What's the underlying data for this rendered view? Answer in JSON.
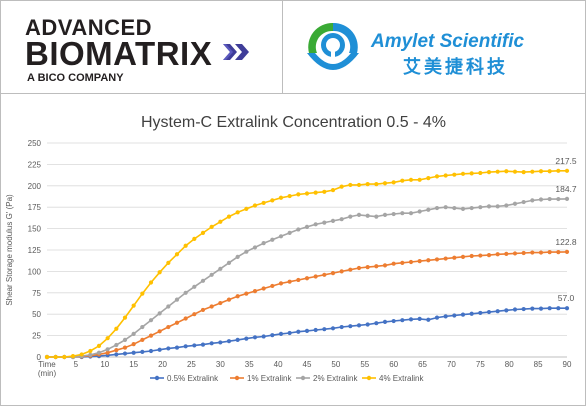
{
  "logos": {
    "advanced_biomatrix": {
      "line1": "ADVANCED",
      "line2": "BIOMATRIX",
      "line3": "A BICO COMPANY"
    },
    "amylet": {
      "name": "Amylet Scientific",
      "chinese": "艾美捷科技",
      "colors": {
        "primary": "#1f8fd6",
        "green": "#3aaa35"
      }
    }
  },
  "chart_data": {
    "type": "line",
    "title": "Hystem-C Extralink Concentration 0.5 - 4%",
    "xlabel": "Time (min)",
    "ylabel": "Shear Storage modulus G' (Pa)",
    "xlim": [
      0,
      90
    ],
    "ylim": [
      0,
      250
    ],
    "xticks": [
      5,
      10,
      15,
      20,
      25,
      30,
      35,
      40,
      45,
      50,
      55,
      60,
      65,
      70,
      75,
      80,
      85,
      90
    ],
    "yticks": [
      0,
      25,
      50,
      75,
      100,
      125,
      150,
      175,
      200,
      225,
      250
    ],
    "x_axis_first_label": "Time",
    "x_axis_first_label_unit": "(min)",
    "grid": "horizontal",
    "legend_position": "bottom",
    "series": [
      {
        "name": "0.5% Extralink",
        "color": "#4472c4",
        "end_label": "57.0",
        "x": [
          0,
          1.5,
          3,
          4.5,
          6,
          7.5,
          9,
          10.5,
          12,
          13.5,
          15,
          16.5,
          18,
          19.5,
          21,
          22.5,
          24,
          25.5,
          27,
          28.5,
          30,
          31.5,
          33,
          34.5,
          36,
          37.5,
          39,
          40.5,
          42,
          43.5,
          45,
          46.5,
          48,
          49.5,
          51,
          52.5,
          54,
          55.5,
          57,
          58.5,
          60,
          61.5,
          63,
          64.5,
          66,
          67.5,
          69,
          70.5,
          72,
          73.5,
          75,
          76.5,
          78,
          79.5,
          81,
          82.5,
          84,
          85.5,
          87,
          88.5,
          90
        ],
        "y": [
          0,
          0,
          0,
          0,
          0,
          0.5,
          1,
          2,
          3,
          4,
          5,
          6,
          7,
          8.5,
          10,
          11,
          12.5,
          13.5,
          14.5,
          16,
          17,
          18.5,
          20,
          21.5,
          23,
          24,
          25.5,
          27,
          28,
          29.5,
          30.5,
          31.5,
          32.5,
          33.5,
          35,
          36,
          37,
          38,
          39.5,
          41,
          42,
          43,
          44,
          44.5,
          43.5,
          46,
          47.5,
          48.5,
          49.5,
          50.5,
          51.5,
          52.5,
          53.5,
          54.5,
          55.5,
          56,
          56.5,
          56.5,
          57,
          57,
          57
        ]
      },
      {
        "name": "1% Extralink",
        "color": "#ed7d31",
        "end_label": "122.8",
        "x": [
          0,
          1.5,
          3,
          4.5,
          6,
          7.5,
          9,
          10.5,
          12,
          13.5,
          15,
          16.5,
          18,
          19.5,
          21,
          22.5,
          24,
          25.5,
          27,
          28.5,
          30,
          31.5,
          33,
          34.5,
          36,
          37.5,
          39,
          40.5,
          42,
          43.5,
          45,
          46.5,
          48,
          49.5,
          51,
          52.5,
          54,
          55.5,
          57,
          58.5,
          60,
          61.5,
          63,
          64.5,
          66,
          67.5,
          69,
          70.5,
          72,
          73.5,
          75,
          76.5,
          78,
          79.5,
          81,
          82.5,
          84,
          85.5,
          87,
          88.5,
          90
        ],
        "y": [
          0,
          0,
          0,
          0,
          0.5,
          1.5,
          3,
          5,
          8,
          11,
          15,
          20,
          25,
          30,
          35,
          40,
          45,
          50,
          55,
          59,
          63,
          67,
          71,
          74,
          77,
          80,
          83,
          86,
          88,
          90,
          92,
          94,
          96,
          98,
          100,
          102,
          104,
          105,
          106,
          107,
          109,
          110,
          111,
          112,
          113,
          114,
          115,
          116,
          117,
          118,
          118.5,
          119,
          120,
          120.5,
          121,
          121.5,
          122,
          122,
          122.5,
          122.5,
          122.8
        ]
      },
      {
        "name": "2% Extralink",
        "color": "#a5a5a5",
        "end_label": "184.7",
        "x": [
          0,
          1.5,
          3,
          4.5,
          6,
          7.5,
          9,
          10.5,
          12,
          13.5,
          15,
          16.5,
          18,
          19.5,
          21,
          22.5,
          24,
          25.5,
          27,
          28.5,
          30,
          31.5,
          33,
          34.5,
          36,
          37.5,
          39,
          40.5,
          42,
          43.5,
          45,
          46.5,
          48,
          49.5,
          51,
          52.5,
          54,
          55.5,
          57,
          58.5,
          60,
          61.5,
          63,
          64.5,
          66,
          67.5,
          69,
          70.5,
          72,
          73.5,
          75,
          76.5,
          78,
          79.5,
          81,
          82.5,
          84,
          85.5,
          87,
          88.5,
          90
        ],
        "y": [
          0,
          0,
          0,
          0,
          1,
          2.5,
          5,
          9,
          14,
          20,
          27,
          35,
          43,
          51,
          59,
          67,
          75,
          82,
          89,
          96,
          103,
          110,
          117,
          123,
          128,
          133,
          137,
          141,
          145,
          149,
          152,
          155,
          157,
          159,
          161,
          164,
          166,
          165,
          164,
          166,
          167,
          168,
          168,
          170,
          172,
          174,
          175,
          174,
          173,
          174,
          175,
          176,
          176,
          177,
          179,
          181,
          183,
          184,
          184.5,
          184.5,
          184.7
        ]
      },
      {
        "name": "4% Extralink",
        "color": "#ffc000",
        "end_label": "217.5",
        "x": [
          0,
          1.5,
          3,
          4.5,
          6,
          7.5,
          9,
          10.5,
          12,
          13.5,
          15,
          16.5,
          18,
          19.5,
          21,
          22.5,
          24,
          25.5,
          27,
          28.5,
          30,
          31.5,
          33,
          34.5,
          36,
          37.5,
          39,
          40.5,
          42,
          43.5,
          45,
          46.5,
          48,
          49.5,
          51,
          52.5,
          54,
          55.5,
          57,
          58.5,
          60,
          61.5,
          63,
          64.5,
          66,
          67.5,
          69,
          70.5,
          72,
          73.5,
          75,
          76.5,
          78,
          79.5,
          81,
          82.5,
          84,
          85.5,
          87,
          88.5,
          90
        ],
        "y": [
          0,
          0,
          0,
          1,
          3,
          7,
          13,
          22,
          33,
          46,
          60,
          74,
          87,
          99,
          110,
          120,
          130,
          138,
          145,
          152,
          158,
          164,
          169,
          173,
          177,
          180,
          183,
          186,
          188,
          190,
          191,
          192,
          193,
          195,
          199,
          201,
          201,
          202,
          202,
          203,
          204,
          206,
          207,
          207,
          209,
          211,
          212,
          213,
          214,
          214.5,
          215,
          216,
          216.5,
          217,
          216.5,
          216,
          216.5,
          217,
          217,
          217.5,
          217.5
        ]
      }
    ]
  }
}
